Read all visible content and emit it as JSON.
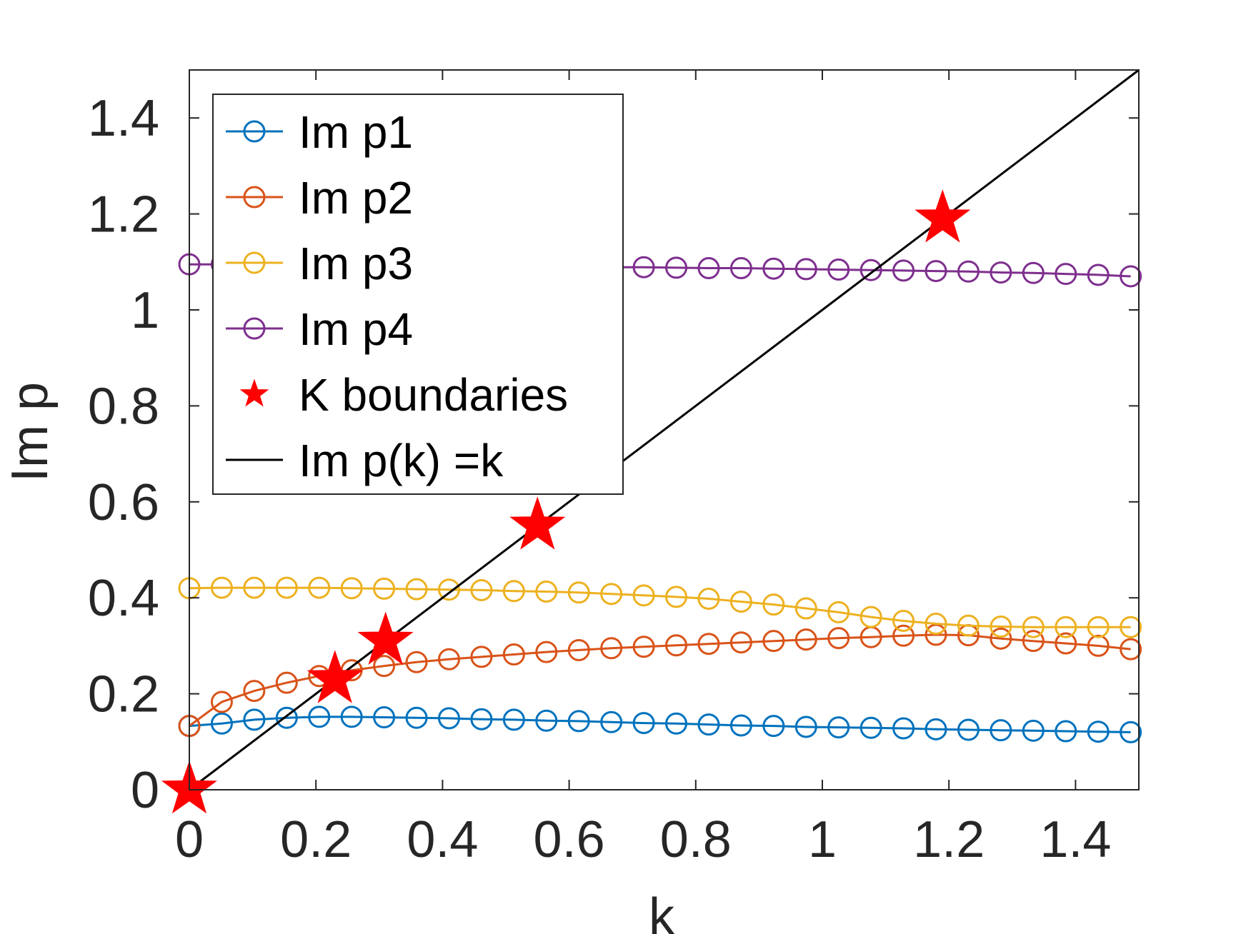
{
  "chart_data": {
    "type": "line",
    "title": "",
    "xlabel": "k",
    "ylabel": "Im p",
    "xlim": [
      0,
      1.5
    ],
    "ylim": [
      0,
      1.5
    ],
    "xticks": [
      "0",
      "0.2",
      "0.4",
      "0.6",
      "0.8",
      "1",
      "1.2",
      "1.4"
    ],
    "yticks": [
      "0",
      "0.2",
      "0.4",
      "0.6",
      "0.8",
      "1",
      "1.2",
      "1.4"
    ],
    "grid": false,
    "legend_position": "top-left",
    "x": [
      0,
      0.05128,
      0.10256,
      0.15385,
      0.20513,
      0.25641,
      0.30769,
      0.35897,
      0.41026,
      0.46154,
      0.51282,
      0.5641,
      0.61538,
      0.66667,
      0.71795,
      0.76923,
      0.82051,
      0.87179,
      0.92308,
      0.97436,
      1.02564,
      1.07692,
      1.12821,
      1.17949,
      1.23077,
      1.28205,
      1.33333,
      1.38462,
      1.4359,
      1.48718
    ],
    "series": [
      {
        "name": "Im p1",
        "color": "#0072BD",
        "marker": "circle",
        "values": [
          0.133,
          0.138,
          0.146,
          0.15,
          0.152,
          0.152,
          0.151,
          0.15,
          0.149,
          0.147,
          0.146,
          0.144,
          0.143,
          0.141,
          0.139,
          0.138,
          0.136,
          0.134,
          0.133,
          0.131,
          0.13,
          0.129,
          0.128,
          0.126,
          0.125,
          0.124,
          0.123,
          0.122,
          0.121,
          0.12
        ]
      },
      {
        "name": "Im p2",
        "color": "#D95319",
        "marker": "circle",
        "values": [
          0.133,
          0.183,
          0.206,
          0.223,
          0.237,
          0.249,
          0.258,
          0.266,
          0.272,
          0.277,
          0.282,
          0.287,
          0.291,
          0.295,
          0.298,
          0.301,
          0.304,
          0.307,
          0.31,
          0.313,
          0.316,
          0.318,
          0.321,
          0.323,
          0.322,
          0.315,
          0.31,
          0.305,
          0.3,
          0.293
        ]
      },
      {
        "name": "Im p3",
        "color": "#EDB120",
        "marker": "circle",
        "values": [
          0.42,
          0.421,
          0.421,
          0.421,
          0.421,
          0.42,
          0.419,
          0.418,
          0.417,
          0.416,
          0.414,
          0.413,
          0.411,
          0.408,
          0.405,
          0.402,
          0.398,
          0.392,
          0.386,
          0.378,
          0.37,
          0.36,
          0.352,
          0.346,
          0.342,
          0.34,
          0.339,
          0.339,
          0.339,
          0.339
        ]
      },
      {
        "name": "Im p4",
        "color": "#7E2F8E",
        "marker": "circle",
        "values": [
          1.095,
          1.095,
          1.094,
          1.094,
          1.094,
          1.093,
          1.093,
          1.092,
          1.092,
          1.091,
          1.091,
          1.09,
          1.09,
          1.089,
          1.089,
          1.088,
          1.087,
          1.087,
          1.086,
          1.085,
          1.084,
          1.083,
          1.082,
          1.081,
          1.08,
          1.078,
          1.077,
          1.075,
          1.073,
          1.07
        ]
      }
    ],
    "boundaries": {
      "name": "K boundaries",
      "color": "#FF0000",
      "marker": "star",
      "x": [
        0.0,
        0.23,
        0.31,
        0.55,
        1.19
      ],
      "y": [
        0.0,
        0.23,
        0.31,
        0.55,
        1.19
      ]
    },
    "reference_line": {
      "name": "Im p(k) =k",
      "color": "#000000",
      "x": [
        0,
        1.5
      ],
      "y": [
        0,
        1.5
      ]
    }
  }
}
